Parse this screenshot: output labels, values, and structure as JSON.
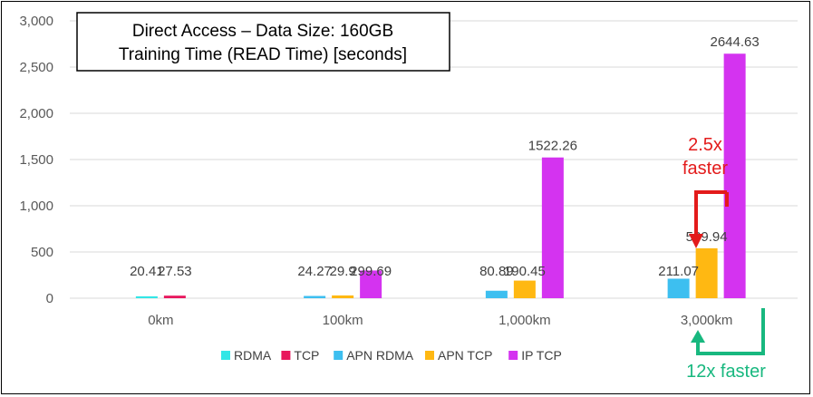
{
  "chart_data": {
    "type": "bar",
    "title": "Direct Access – Data Size: 160GB",
    "subtitle": "Training Time (READ Time) [seconds]",
    "xlabel": "",
    "ylabel": "",
    "categories": [
      "0km",
      "100km",
      "1,000km",
      "3,000km"
    ],
    "yticks": [
      "0",
      "500",
      "1,000",
      "1,500",
      "2,000",
      "2,500",
      "3,000"
    ],
    "ylim": [
      0,
      3000
    ],
    "grid": true,
    "legend_position": "bottom",
    "series": [
      {
        "name": "RDMA",
        "color": "#33e6e6",
        "values": [
          20.41,
          null,
          null,
          null
        ],
        "labels": [
          "20.41",
          "",
          "",
          ""
        ]
      },
      {
        "name": "TCP",
        "color": "#e8175d",
        "values": [
          27.53,
          null,
          null,
          null
        ],
        "labels": [
          "27.53",
          "",
          "",
          ""
        ]
      },
      {
        "name": "APN RDMA",
        "color": "#3dbff0",
        "values": [
          null,
          24.27,
          80.89,
          211.07
        ],
        "labels": [
          "",
          "24.27",
          "80.89",
          "211.07"
        ]
      },
      {
        "name": "APN TCP",
        "color": "#ffb812",
        "values": [
          null,
          29.9,
          190.45,
          539.94
        ],
        "labels": [
          "",
          "29.9",
          "190.45",
          "539.94"
        ]
      },
      {
        "name": "IP TCP",
        "color": "#d433f0",
        "values": [
          null,
          299.69,
          1522.26,
          2644.63
        ],
        "labels": [
          "",
          "299.69",
          "1522.26",
          "2644.63"
        ]
      }
    ],
    "annotations": {
      "red_line1": "2.5x",
      "red_line2": "faster",
      "green": "12x faster",
      "red_color": "#e31b1b",
      "green_color": "#18b87f"
    }
  }
}
